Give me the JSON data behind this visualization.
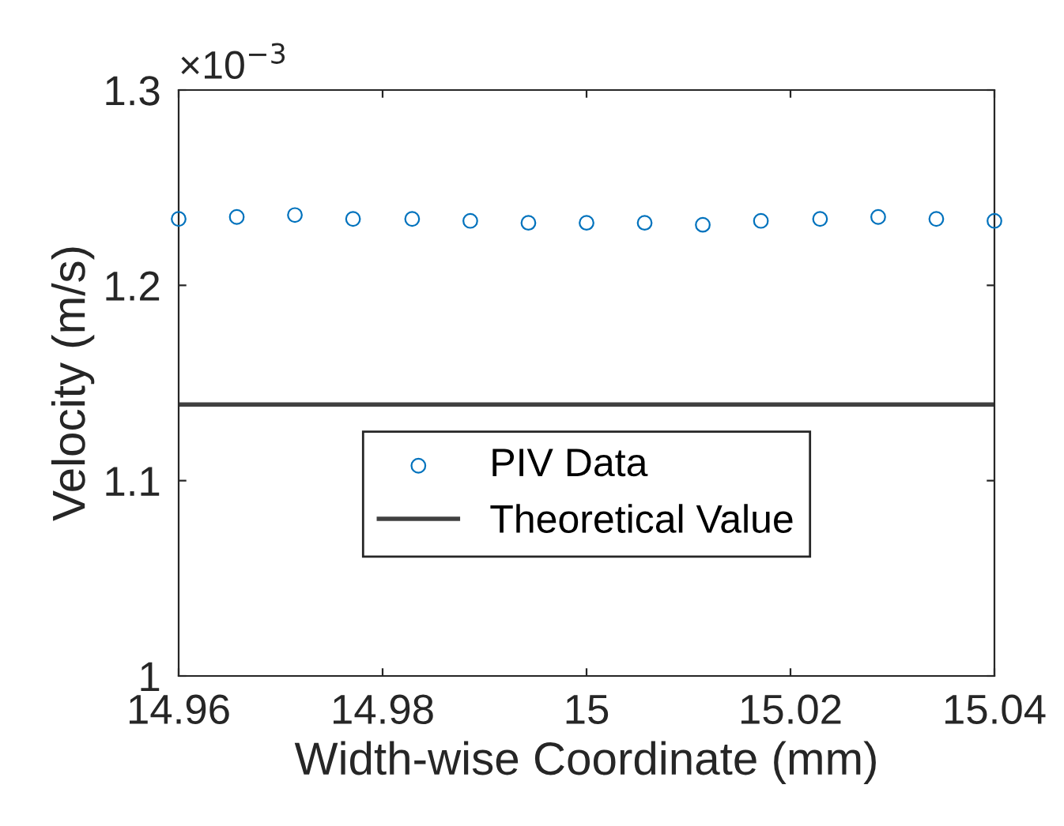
{
  "chart_data": {
    "type": "scatter",
    "xlabel": "Width-wise Coordinate (mm)",
    "ylabel": "Velocity (m/s)",
    "annotations": [
      "×10$^{−3}$"
    ],
    "xlim": [
      14.96,
      15.04
    ],
    "xticks": [
      14.96,
      14.98,
      15,
      15.02,
      15.04
    ],
    "ylim": [
      1,
      1.3
    ],
    "yticks": [
      1,
      1.1,
      1.2,
      1.3
    ],
    "grid": false,
    "legend": "lower center",
    "series": [
      {
        "name": "PIV Data",
        "marker": "circle",
        "color": "#0072bd",
        "x": [
          14.96,
          14.9657,
          14.9714,
          14.9771,
          14.9829,
          14.9886,
          14.9943,
          15.0,
          15.0057,
          15.0114,
          15.0171,
          15.0229,
          15.0286,
          15.0343,
          15.04
        ],
        "values": [
          1.234,
          1.235,
          1.236,
          1.234,
          1.234,
          1.233,
          1.232,
          1.232,
          1.232,
          1.231,
          1.233,
          1.234,
          1.235,
          1.234,
          1.233
        ]
      },
      {
        "name": "Theoretical Value",
        "type": "line",
        "marker": "none",
        "line_style": "solid",
        "color": "#404040",
        "x": [
          14.96,
          15.04
        ],
        "values": [
          1.139,
          1.139
        ]
      }
    ]
  }
}
